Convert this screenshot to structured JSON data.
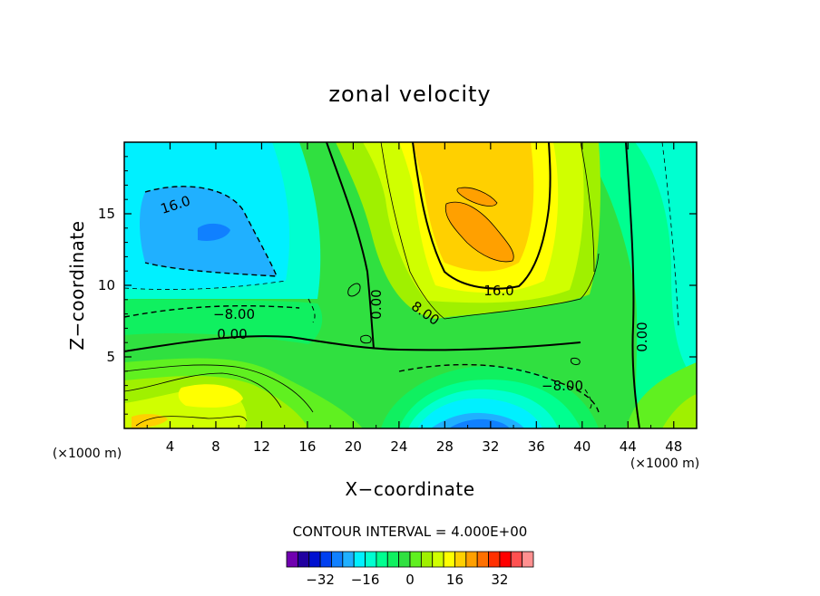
{
  "chart_data": {
    "type": "contour",
    "title": "zonal velocity",
    "xlabel": "X−coordinate",
    "ylabel": "Z−coordinate",
    "x_unit": "(×1000 m)",
    "xlim": [
      0,
      50
    ],
    "ylim": [
      0,
      20
    ],
    "x_ticks": [
      "4",
      "8",
      "12",
      "16",
      "20",
      "24",
      "28",
      "32",
      "36",
      "40",
      "44",
      "48"
    ],
    "y_ticks": [
      "5",
      "10",
      "15"
    ],
    "contour_interval_text": "CONTOUR INTERVAL = 4.000E+00",
    "contour_labels": [
      "16.0",
      "−8.00",
      "0.00",
      "0.00",
      "8.00",
      "16.0",
      "−8.00",
      "0.00"
    ],
    "colorbar": {
      "ticks": [
        "−32",
        "−16",
        "0",
        "16",
        "32"
      ],
      "colors": [
        "#7000b0",
        "#2000a0",
        "#0010d0",
        "#0040f0",
        "#1080ff",
        "#20b0ff",
        "#00f0ff",
        "#00ffd0",
        "#00ff90",
        "#10f060",
        "#30e040",
        "#60f020",
        "#a0f000",
        "#d0ff00",
        "#ffff00",
        "#ffd000",
        "#ffa000",
        "#ff7000",
        "#ff3000",
        "#ff0000",
        "#ff5050",
        "#ff9090"
      ]
    },
    "features": [
      {
        "kind": "min",
        "label": "−24",
        "x": 7.5,
        "z": 13.5
      },
      {
        "kind": "max",
        "label": "28",
        "x": 30,
        "z": 13.5
      },
      {
        "kind": "min",
        "label": "−24",
        "x": 31,
        "z": 0.5
      }
    ]
  }
}
